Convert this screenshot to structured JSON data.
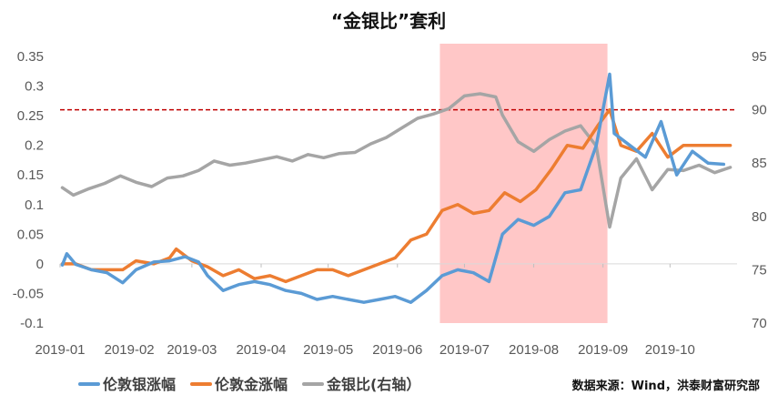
{
  "chart_data": {
    "type": "line",
    "title": "“金银比”套利",
    "x_ticks": [
      "2019-01",
      "2019-02",
      "2019-03",
      "2019-04",
      "2019-05",
      "2019-06",
      "2019-07",
      "2019-08",
      "2019-09",
      "2019-10"
    ],
    "x_range": [
      "2019-01-01",
      "2019-10-31"
    ],
    "y_left": {
      "min": -0.1,
      "max": 0.35,
      "ticks": [
        "-0.1",
        "-0.05",
        "0",
        "0.05",
        "0.1",
        "0.15",
        "0.2",
        "0.25",
        "0.3",
        "0.35"
      ]
    },
    "y_right": {
      "min": 70,
      "max": 95,
      "ticks": [
        "70",
        "75",
        "80",
        "85",
        "90",
        "95"
      ]
    },
    "reference_line": {
      "value": 90,
      "axis": "right",
      "style": "dashed",
      "color": "#C00000"
    },
    "highlight_band": {
      "from": "2019-06-20",
      "to": "2019-09-03",
      "color": "#FFC7C7"
    },
    "series": [
      {
        "name": "伦敦银涨幅",
        "axis": "left",
        "color": "#5B9BD5",
        "points": [
          [
            "2019-01-02",
            -0.002
          ],
          [
            "2019-01-04",
            0.017
          ],
          [
            "2019-01-08",
            -0.001
          ],
          [
            "2019-01-15",
            -0.01
          ],
          [
            "2019-01-22",
            -0.015
          ],
          [
            "2019-01-29",
            -0.032
          ],
          [
            "2019-02-04",
            -0.01
          ],
          [
            "2019-02-12",
            0.003
          ],
          [
            "2019-02-19",
            0.005
          ],
          [
            "2019-02-26",
            0.012
          ],
          [
            "2019-03-04",
            0.003
          ],
          [
            "2019-03-08",
            -0.02
          ],
          [
            "2019-03-15",
            -0.045
          ],
          [
            "2019-03-22",
            -0.035
          ],
          [
            "2019-03-29",
            -0.03
          ],
          [
            "2019-04-05",
            -0.035
          ],
          [
            "2019-04-12",
            -0.045
          ],
          [
            "2019-04-19",
            -0.05
          ],
          [
            "2019-04-26",
            -0.06
          ],
          [
            "2019-05-03",
            -0.055
          ],
          [
            "2019-05-10",
            -0.06
          ],
          [
            "2019-05-17",
            -0.065
          ],
          [
            "2019-05-24",
            -0.06
          ],
          [
            "2019-05-31",
            -0.055
          ],
          [
            "2019-06-07",
            -0.065
          ],
          [
            "2019-06-14",
            -0.045
          ],
          [
            "2019-06-21",
            -0.02
          ],
          [
            "2019-06-28",
            -0.01
          ],
          [
            "2019-07-05",
            -0.015
          ],
          [
            "2019-07-12",
            -0.03
          ],
          [
            "2019-07-18",
            0.05
          ],
          [
            "2019-07-25",
            0.075
          ],
          [
            "2019-08-01",
            0.065
          ],
          [
            "2019-08-08",
            0.08
          ],
          [
            "2019-08-15",
            0.12
          ],
          [
            "2019-08-22",
            0.125
          ],
          [
            "2019-08-29",
            0.2
          ],
          [
            "2019-09-04",
            0.32
          ],
          [
            "2019-09-06",
            0.22
          ],
          [
            "2019-09-13",
            0.2
          ],
          [
            "2019-09-20",
            0.18
          ],
          [
            "2019-09-27",
            0.24
          ],
          [
            "2019-10-04",
            0.15
          ],
          [
            "2019-10-11",
            0.19
          ],
          [
            "2019-10-18",
            0.17
          ],
          [
            "2019-10-25",
            0.168
          ]
        ]
      },
      {
        "name": "伦敦金涨幅",
        "axis": "left",
        "color": "#ED7D31",
        "points": [
          [
            "2019-01-02",
            0
          ],
          [
            "2019-01-08",
            0
          ],
          [
            "2019-01-15",
            -0.01
          ],
          [
            "2019-01-22",
            -0.01
          ],
          [
            "2019-01-29",
            -0.01
          ],
          [
            "2019-02-04",
            0.005
          ],
          [
            "2019-02-12",
            0
          ],
          [
            "2019-02-19",
            0.01
          ],
          [
            "2019-02-22",
            0.025
          ],
          [
            "2019-03-01",
            0.005
          ],
          [
            "2019-03-08",
            -0.005
          ],
          [
            "2019-03-15",
            -0.02
          ],
          [
            "2019-03-22",
            -0.01
          ],
          [
            "2019-03-29",
            -0.025
          ],
          [
            "2019-04-05",
            -0.02
          ],
          [
            "2019-04-12",
            -0.03
          ],
          [
            "2019-04-19",
            -0.02
          ],
          [
            "2019-04-26",
            -0.01
          ],
          [
            "2019-05-03",
            -0.01
          ],
          [
            "2019-05-10",
            -0.02
          ],
          [
            "2019-05-17",
            -0.01
          ],
          [
            "2019-05-24",
            0
          ],
          [
            "2019-05-31",
            0.01
          ],
          [
            "2019-06-07",
            0.04
          ],
          [
            "2019-06-14",
            0.05
          ],
          [
            "2019-06-21",
            0.09
          ],
          [
            "2019-06-28",
            0.1
          ],
          [
            "2019-07-05",
            0.085
          ],
          [
            "2019-07-12",
            0.09
          ],
          [
            "2019-07-19",
            0.12
          ],
          [
            "2019-07-26",
            0.105
          ],
          [
            "2019-08-02",
            0.125
          ],
          [
            "2019-08-09",
            0.16
          ],
          [
            "2019-08-16",
            0.2
          ],
          [
            "2019-08-23",
            0.195
          ],
          [
            "2019-08-30",
            0.235
          ],
          [
            "2019-09-04",
            0.26
          ],
          [
            "2019-09-09",
            0.2
          ],
          [
            "2019-09-16",
            0.19
          ],
          [
            "2019-09-23",
            0.22
          ],
          [
            "2019-09-30",
            0.18
          ],
          [
            "2019-10-07",
            0.2
          ],
          [
            "2019-10-14",
            0.2
          ],
          [
            "2019-10-21",
            0.2
          ],
          [
            "2019-10-28",
            0.2
          ]
        ]
      },
      {
        "name": "金银比(右轴)",
        "axis": "right",
        "color": "#A5A5A5",
        "points": [
          [
            "2019-01-02",
            82.7
          ],
          [
            "2019-01-07",
            82.0
          ],
          [
            "2019-01-14",
            82.6
          ],
          [
            "2019-01-21",
            83.1
          ],
          [
            "2019-01-28",
            83.8
          ],
          [
            "2019-02-04",
            83.2
          ],
          [
            "2019-02-11",
            82.8
          ],
          [
            "2019-02-18",
            83.6
          ],
          [
            "2019-02-25",
            83.8
          ],
          [
            "2019-03-04",
            84.3
          ],
          [
            "2019-03-11",
            85.2
          ],
          [
            "2019-03-18",
            84.8
          ],
          [
            "2019-03-25",
            85.0
          ],
          [
            "2019-04-01",
            85.3
          ],
          [
            "2019-04-08",
            85.6
          ],
          [
            "2019-04-15",
            85.2
          ],
          [
            "2019-04-22",
            85.8
          ],
          [
            "2019-04-29",
            85.5
          ],
          [
            "2019-05-06",
            85.9
          ],
          [
            "2019-05-13",
            86.0
          ],
          [
            "2019-05-20",
            86.8
          ],
          [
            "2019-05-27",
            87.4
          ],
          [
            "2019-06-03",
            88.3
          ],
          [
            "2019-06-10",
            89.2
          ],
          [
            "2019-06-17",
            89.6
          ],
          [
            "2019-06-24",
            90.1
          ],
          [
            "2019-07-01",
            91.3
          ],
          [
            "2019-07-08",
            91.5
          ],
          [
            "2019-07-15",
            91.2
          ],
          [
            "2019-07-18",
            89.5
          ],
          [
            "2019-07-25",
            87.0
          ],
          [
            "2019-08-01",
            86.1
          ],
          [
            "2019-08-08",
            87.2
          ],
          [
            "2019-08-15",
            88.0
          ],
          [
            "2019-08-22",
            88.5
          ],
          [
            "2019-08-29",
            86.6
          ],
          [
            "2019-09-04",
            79.0
          ],
          [
            "2019-09-09",
            83.6
          ],
          [
            "2019-09-16",
            85.4
          ],
          [
            "2019-09-23",
            82.5
          ],
          [
            "2019-09-30",
            84.4
          ],
          [
            "2019-10-07",
            84.3
          ],
          [
            "2019-10-14",
            84.8
          ],
          [
            "2019-10-21",
            84.1
          ],
          [
            "2019-10-28",
            84.6
          ]
        ]
      }
    ],
    "legend": {
      "position": "bottom-left",
      "items": [
        "伦敦银涨幅",
        "伦敦金涨幅",
        "金银比(右轴）"
      ]
    },
    "source": "数据来源：Wind，洪泰财富研究部"
  }
}
